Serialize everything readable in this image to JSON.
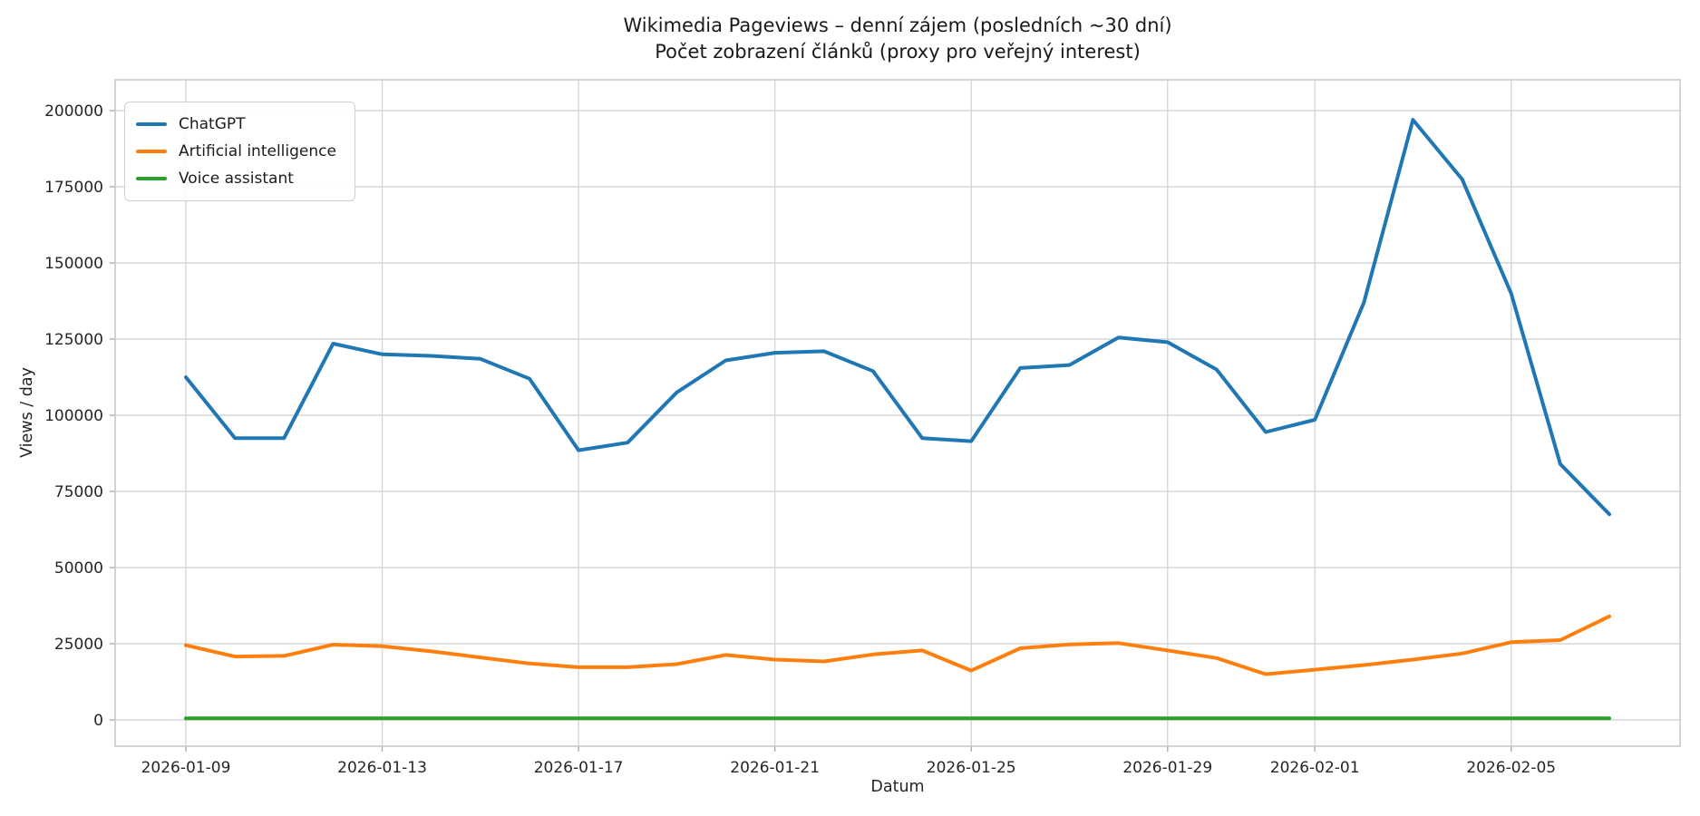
{
  "chart_data": {
    "type": "line",
    "title": "Wikimedia Pageviews – denní zájem (posledních ~30 dní)",
    "subtitle": "Počet zobrazení článků (proxy pro veřejný interest)",
    "xlabel": "Datum",
    "ylabel": "Views / day",
    "ylim": [
      0,
      200000
    ],
    "grid": true,
    "legend_position": "upper left",
    "background": "#ffffff",
    "grid_color": "#d6d6d6",
    "y_ticks": [
      0,
      25000,
      50000,
      75000,
      100000,
      125000,
      150000,
      175000,
      200000
    ],
    "x_tick_labels": [
      "2026-01-09",
      "2026-01-13",
      "2026-01-17",
      "2026-01-21",
      "2026-01-25",
      "2026-01-29",
      "2026-02-01",
      "2026-02-05"
    ],
    "x_tick_day_indices": [
      0,
      4,
      8,
      12,
      16,
      20,
      23,
      27
    ],
    "dates": [
      "2026-01-09",
      "2026-01-10",
      "2026-01-11",
      "2026-01-12",
      "2026-01-13",
      "2026-01-14",
      "2026-01-15",
      "2026-01-16",
      "2026-01-17",
      "2026-01-18",
      "2026-01-19",
      "2026-01-20",
      "2026-01-21",
      "2026-01-22",
      "2026-01-23",
      "2026-01-24",
      "2026-01-25",
      "2026-01-26",
      "2026-01-27",
      "2026-01-28",
      "2026-01-29",
      "2026-01-30",
      "2026-01-31",
      "2026-02-01",
      "2026-02-02",
      "2026-02-03",
      "2026-02-04",
      "2026-02-05",
      "2026-02-06",
      "2026-02-07"
    ],
    "series": [
      {
        "name": "ChatGPT",
        "color": "#1f77b4",
        "values": [
          112500,
          92500,
          92500,
          123500,
          120000,
          119500,
          118500,
          112000,
          88500,
          91000,
          107500,
          118000,
          120500,
          121000,
          114500,
          92500,
          91500,
          115500,
          116500,
          125500,
          124000,
          115000,
          94500,
          98500,
          137000,
          197000,
          177500,
          140000,
          84000,
          67500
        ]
      },
      {
        "name": "Artificial intelligence",
        "color": "#ff7f0e",
        "values": [
          24500,
          20800,
          21000,
          24700,
          24200,
          22500,
          20500,
          18500,
          17300,
          17300,
          18300,
          21300,
          19800,
          19200,
          21500,
          22800,
          16200,
          23500,
          24800,
          25200,
          22800,
          20300,
          15000,
          16500,
          18000,
          19800,
          21800,
          25500,
          26200,
          34000
        ]
      },
      {
        "name": "Voice assistant",
        "color": "#2ca02c",
        "values": [
          500,
          500,
          500,
          500,
          500,
          500,
          500,
          500,
          500,
          500,
          500,
          500,
          500,
          500,
          500,
          500,
          500,
          500,
          500,
          500,
          500,
          500,
          500,
          500,
          500,
          500,
          500,
          500,
          500,
          500
        ]
      }
    ]
  }
}
